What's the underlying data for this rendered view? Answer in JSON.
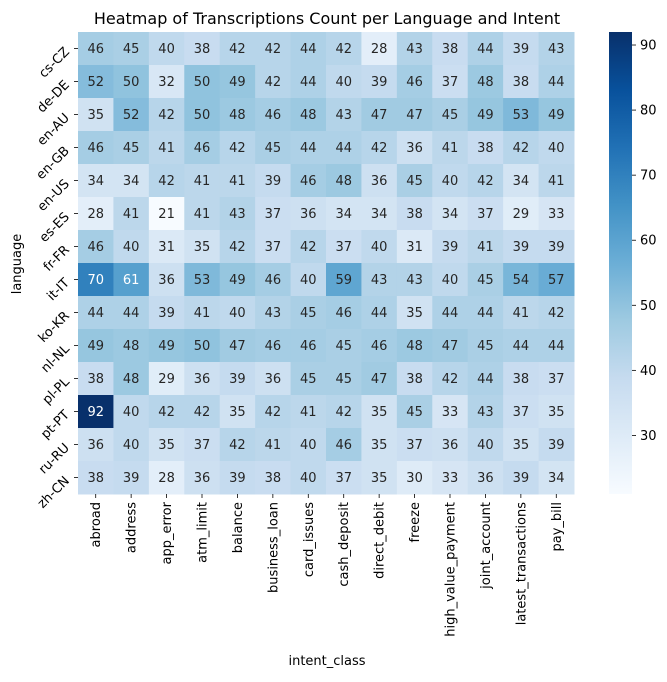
{
  "chart_data": {
    "type": "heatmap",
    "title": "Heatmap of Transcriptions Count per Language and Intent",
    "xlabel": "intent_class",
    "ylabel": "language",
    "x_categories": [
      "abroad",
      "address",
      "app_error",
      "atm_limit",
      "balance",
      "business_loan",
      "card_issues",
      "cash_deposit",
      "direct_debit",
      "freeze",
      "high_value_payment",
      "joint_account",
      "latest_transactions",
      "pay_bill"
    ],
    "y_categories": [
      "cs-CZ",
      "de-DE",
      "en-AU",
      "en-GB",
      "en-US",
      "es-ES",
      "fr-FR",
      "it-IT",
      "ko-KR",
      "nl-NL",
      "pl-PL",
      "pt-PT",
      "ru-RU",
      "zh-CN"
    ],
    "values": [
      [
        46,
        45,
        40,
        38,
        42,
        42,
        44,
        42,
        28,
        43,
        38,
        44,
        39,
        43
      ],
      [
        52,
        50,
        32,
        50,
        49,
        42,
        44,
        40,
        39,
        46,
        37,
        48,
        38,
        44
      ],
      [
        35,
        52,
        42,
        50,
        48,
        46,
        48,
        43,
        47,
        47,
        45,
        49,
        53,
        49
      ],
      [
        46,
        45,
        41,
        46,
        42,
        45,
        44,
        44,
        42,
        36,
        41,
        38,
        42,
        40
      ],
      [
        34,
        34,
        42,
        41,
        41,
        39,
        46,
        48,
        36,
        45,
        40,
        42,
        34,
        41
      ],
      [
        28,
        41,
        21,
        41,
        43,
        37,
        36,
        34,
        34,
        38,
        34,
        37,
        29,
        33
      ],
      [
        46,
        40,
        31,
        35,
        42,
        37,
        42,
        37,
        40,
        31,
        39,
        41,
        39,
        39
      ],
      [
        70,
        61,
        36,
        53,
        49,
        46,
        40,
        59,
        43,
        43,
        40,
        45,
        54,
        57
      ],
      [
        44,
        44,
        39,
        41,
        40,
        43,
        45,
        46,
        44,
        35,
        44,
        44,
        41,
        42
      ],
      [
        49,
        48,
        49,
        50,
        47,
        46,
        46,
        45,
        46,
        48,
        47,
        45,
        44,
        44
      ],
      [
        38,
        48,
        29,
        36,
        39,
        36,
        45,
        45,
        47,
        38,
        42,
        44,
        38,
        37
      ],
      [
        92,
        40,
        42,
        42,
        35,
        42,
        41,
        42,
        35,
        45,
        33,
        43,
        37,
        35
      ],
      [
        36,
        40,
        35,
        37,
        42,
        41,
        40,
        46,
        35,
        37,
        36,
        40,
        35,
        39
      ],
      [
        38,
        39,
        28,
        36,
        39,
        38,
        40,
        37,
        35,
        30,
        33,
        36,
        39,
        34
      ]
    ],
    "colorscale": "Blues",
    "vmin": 21,
    "vmax": 92,
    "colorbar_ticks": [
      30,
      40,
      50,
      60,
      70,
      80,
      90
    ],
    "annotations": true,
    "grid": false
  }
}
